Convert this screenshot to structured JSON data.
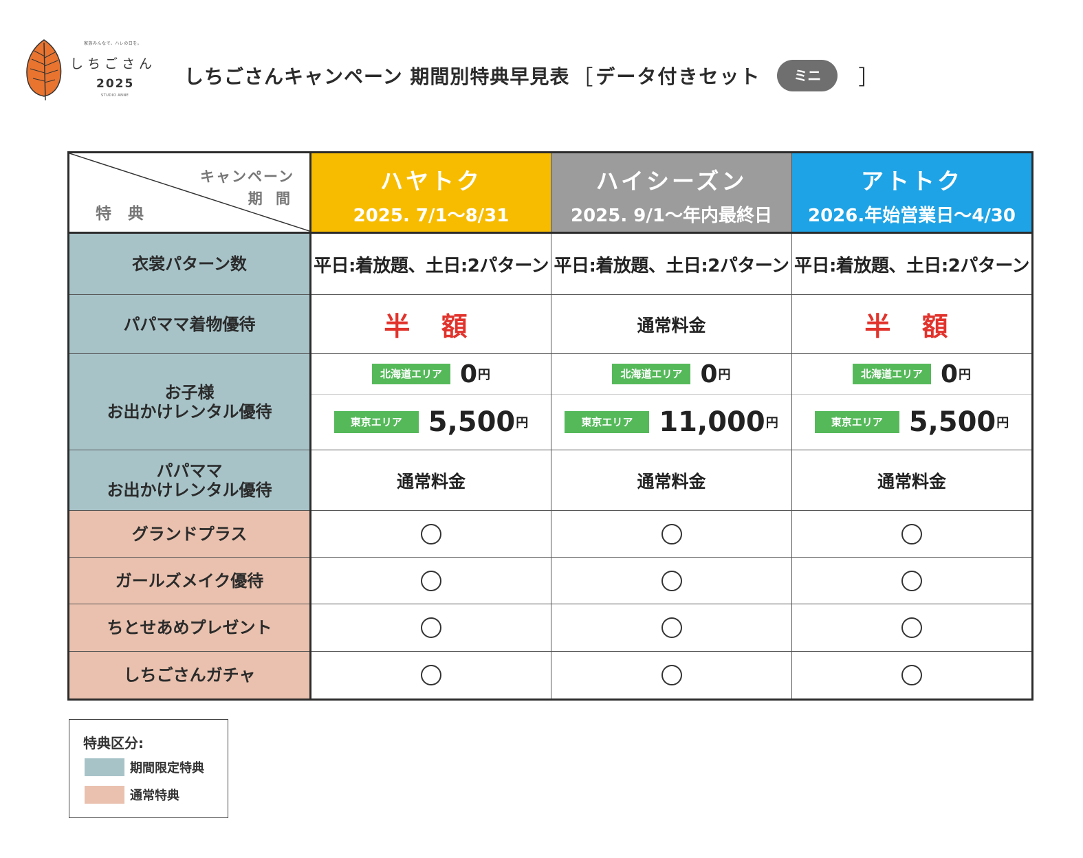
{
  "logo": {
    "tagline": "家族みんなで、ハレの日を。",
    "name": "しちごさん",
    "year": "2025",
    "sub": "STUDIO ANNE"
  },
  "title": {
    "main": "しちごさんキャンペーン 期間別特典早見表",
    "bracket_open": "［",
    "set_label": "データ付きセット",
    "badge": "ミニ",
    "bracket_close": "］"
  },
  "table": {
    "corner": {
      "campaign": "キャンペーン",
      "period": "期 間",
      "benefit": "特 典"
    },
    "campaigns": [
      {
        "name": "ハヤトク",
        "period": "2025. 7/1～8/31",
        "color": "#f7bc00"
      },
      {
        "name": "ハイシーズン",
        "period": "2025. 9/1～年内最終日",
        "color": "#9c9c9c"
      },
      {
        "name": "アトトク",
        "period": "2026.年始営業日～4/30",
        "color": "#1ea3e6"
      }
    ],
    "rows": {
      "costume": {
        "label": "衣裳パターン数",
        "values": [
          "平日:着放題、土日:2パターン",
          "平日:着放題、土日:2パターン",
          "平日:着放題、土日:2パターン"
        ]
      },
      "parent_kimono": {
        "label": "パパママ着物優待",
        "values": [
          "半 額",
          "通常料金",
          "半 額"
        ]
      },
      "child_rental": {
        "label_line1": "お子様",
        "label_line2": "お出かけレンタル優待",
        "hokkaido_tag": "北海道エリア",
        "tokyo_tag": "東京エリア",
        "yen": "円",
        "hokkaido_prices": [
          "0",
          "0",
          "0"
        ],
        "tokyo_prices": [
          "5,500",
          "11,000",
          "5,500"
        ]
      },
      "parent_rental": {
        "label_line1": "パパママ",
        "label_line2": "お出かけレンタル優待",
        "values": [
          "通常料金",
          "通常料金",
          "通常料金"
        ]
      },
      "grand_plus": {
        "label": "グランドプラス",
        "mark": "◯"
      },
      "girls_make": {
        "label": "ガールズメイク優待",
        "mark": "◯"
      },
      "chitose": {
        "label": "ちとせあめプレゼント",
        "mark": "◯"
      },
      "gacha": {
        "label": "しちごさんガチャ",
        "mark": "◯"
      }
    }
  },
  "legend": {
    "title": "特典区分:",
    "items": [
      {
        "label": "期間限定特典",
        "color": "#a7c3c8"
      },
      {
        "label": "通常特典",
        "color": "#e9c1ae"
      }
    ]
  }
}
